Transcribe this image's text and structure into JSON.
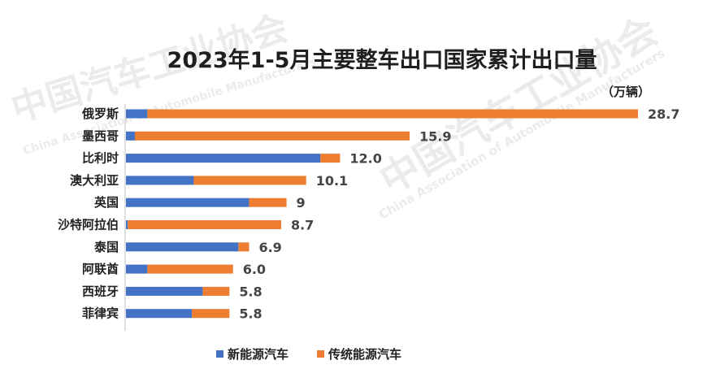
{
  "watermark": {
    "text_cn": "中国汽车工业协会",
    "text_en": "China Association of Automobile Manufacturers"
  },
  "chart_data": {
    "type": "bar",
    "orientation": "horizontal",
    "stacked": true,
    "title": "2023年1-5月主要整车出口国家累计出口量",
    "unit": "（万辆）",
    "categories": [
      "俄罗斯",
      "墨西哥",
      "比利时",
      "澳大利亚",
      "英国",
      "沙特阿拉伯",
      "泰国",
      "阿联酋",
      "西班牙",
      "菲律宾"
    ],
    "series": [
      {
        "name": "新能源汽车",
        "color": "#4472c4",
        "values": [
          1.2,
          0.5,
          10.9,
          3.8,
          6.9,
          0.1,
          6.3,
          1.2,
          4.3,
          3.7
        ]
      },
      {
        "name": "传统能源汽车",
        "color": "#ed7d31",
        "values": [
          27.5,
          15.4,
          1.1,
          6.3,
          2.1,
          8.6,
          0.6,
          4.8,
          1.5,
          2.1
        ]
      }
    ],
    "total_labels": [
      "28.7",
      "15.9",
      "12.0",
      "10.1",
      "9",
      "8.7",
      "6.9",
      "6.0",
      "5.8",
      "5.8"
    ],
    "xlim": [
      0,
      28.7
    ],
    "grid": false,
    "legend_position": "bottom"
  }
}
